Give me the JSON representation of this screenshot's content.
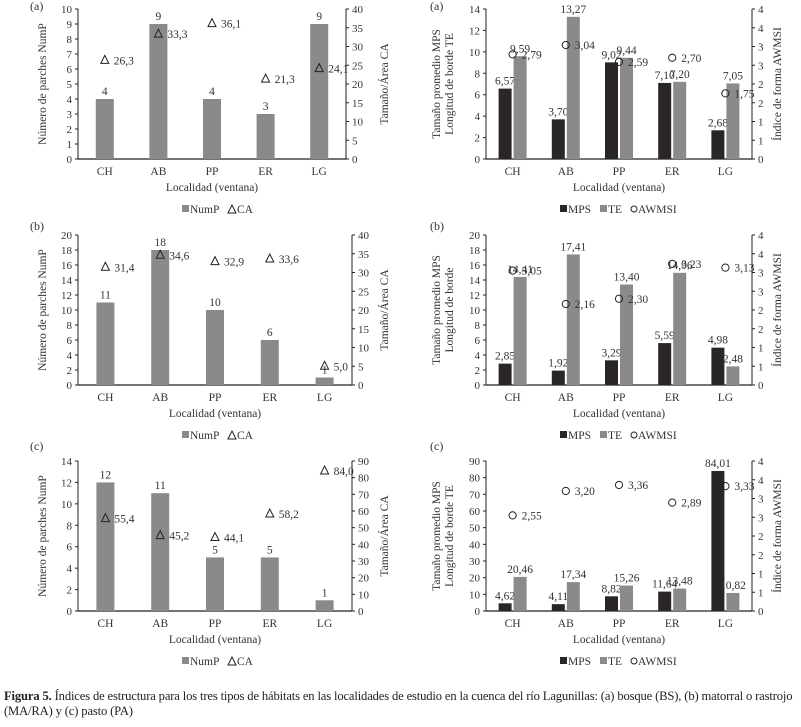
{
  "figure": {
    "caption_label": "Figura 5.",
    "caption_text": " Índices de estructura para los tres tipos de hábitats en las localidades de estudio en la cuenca del río Lagunillas: (a) bosque (BS), (b) matorral o rastrojo (MA/RA) y (c) pasto (PA)"
  },
  "colors": {
    "nump": "#8a8a8c",
    "mps": "#2a2628",
    "te": "#8a8a8c"
  },
  "chart_data": [
    {
      "id": "left-a",
      "panel": "(a)",
      "type": "bar",
      "categories": [
        "CH",
        "AB",
        "PP",
        "ER",
        "LG"
      ],
      "xlabel": "Localidad (ventana)",
      "ylabel": "Número de parches NumP",
      "y2label": "Tamaño/Área CA",
      "ylim": [
        0,
        10
      ],
      "yticks": [
        0,
        1,
        2,
        3,
        4,
        5,
        6,
        7,
        8,
        9,
        10
      ],
      "y2lim": [
        0,
        40
      ],
      "y2ticks": [
        0,
        5,
        10,
        15,
        20,
        25,
        30,
        35,
        40
      ],
      "series": [
        {
          "name": "NumP",
          "kind": "bar",
          "axis": "left",
          "values": [
            4,
            9,
            4,
            3,
            9
          ],
          "labels": [
            "4",
            "9",
            "4",
            "3",
            "9"
          ]
        },
        {
          "name": "CA",
          "kind": "triangle",
          "axis": "right",
          "values": [
            26.3,
            33.3,
            36.1,
            21.3,
            24.1
          ],
          "labels": [
            "26,3",
            "33,3",
            "36,1",
            "21,3",
            "24,1"
          ]
        }
      ],
      "legend": [
        "NumP",
        "CA"
      ],
      "legend_position": "bottom-center"
    },
    {
      "id": "right-a",
      "panel": "(a)",
      "type": "bar",
      "categories": [
        "CH",
        "AB",
        "PP",
        "ER",
        "LG"
      ],
      "xlabel": "Localidad (ventana)",
      "ylabel": [
        "Tamaño promedio MPS",
        "Longitud de borde TE"
      ],
      "y2label": "Índice de forma AWMSI",
      "ylim": [
        0,
        14
      ],
      "yticks": [
        0,
        2,
        4,
        6,
        8,
        10,
        12,
        14
      ],
      "y2lim": [
        0,
        4
      ],
      "y2ticks": [
        0,
        0.5,
        1,
        1.5,
        2,
        2.5,
        3,
        3.5,
        4
      ],
      "y2ticklabels": [
        "0",
        "1",
        "1",
        "2",
        "2",
        "3",
        "3",
        "4",
        "4"
      ],
      "series": [
        {
          "name": "MPS",
          "kind": "bar",
          "axis": "left",
          "values": [
            6.57,
            3.7,
            9.02,
            7.1,
            2.68
          ],
          "labels": [
            "6,57",
            "3,70",
            "9,02",
            "7,10",
            "2,68"
          ]
        },
        {
          "name": "TE",
          "kind": "bar",
          "axis": "left",
          "values": [
            9.59,
            13.27,
            9.44,
            7.2,
            7.05
          ],
          "labels": [
            "9,59",
            "13,27",
            "9,44",
            "7,20",
            "7,05"
          ]
        },
        {
          "name": "AWMSI",
          "kind": "circle",
          "axis": "right",
          "values": [
            2.79,
            3.04,
            2.59,
            2.7,
            1.75
          ],
          "labels": [
            "2,79",
            "3,04",
            "2,59",
            "2,70",
            "1,75"
          ]
        }
      ],
      "legend": [
        "MPS",
        "TE",
        "AWMSI"
      ],
      "legend_position": "bottom-center"
    },
    {
      "id": "left-b",
      "panel": "(b)",
      "type": "bar",
      "categories": [
        "CH",
        "AB",
        "PP",
        "ER",
        "LG"
      ],
      "xlabel": "Localidad (ventana)",
      "ylabel": "Número de parches NumP",
      "y2label": "Tamaño/Área CA",
      "ylim": [
        0,
        20
      ],
      "yticks": [
        0,
        2,
        4,
        6,
        8,
        10,
        12,
        14,
        16,
        18,
        20
      ],
      "y2lim": [
        0,
        40
      ],
      "y2ticks": [
        0,
        5,
        10,
        15,
        20,
        25,
        30,
        35,
        40
      ],
      "series": [
        {
          "name": "NumP",
          "kind": "bar",
          "axis": "left",
          "values": [
            11,
            18,
            10,
            6,
            1
          ],
          "labels": [
            "11",
            "18",
            "10",
            "6",
            "1"
          ]
        },
        {
          "name": "CA",
          "kind": "triangle",
          "axis": "right",
          "values": [
            31.4,
            34.6,
            32.9,
            33.6,
            5.0
          ],
          "labels": [
            "31,4",
            "34,6",
            "32,9",
            "33,6",
            "5,0"
          ]
        }
      ],
      "legend": [
        "NumP",
        "CA"
      ],
      "legend_position": "bottom-center"
    },
    {
      "id": "right-b",
      "panel": "(b)",
      "type": "bar",
      "categories": [
        "CH",
        "AB",
        "PP",
        "ER",
        "LG"
      ],
      "xlabel": "Localidad (ventana)",
      "ylabel": [
        "Tamaño promedio MPS",
        "Longitud de borde"
      ],
      "y2label": "Índice de forma AWMSI",
      "ylim": [
        0,
        20
      ],
      "yticks": [
        0,
        2,
        4,
        6,
        8,
        10,
        12,
        14,
        16,
        18,
        20
      ],
      "y2lim": [
        0,
        4
      ],
      "y2ticks": [
        0,
        0.5,
        1,
        1.5,
        2,
        2.5,
        3,
        3.5,
        4
      ],
      "y2ticklabels": [
        "0",
        "1",
        "1",
        "2",
        "2",
        "3",
        "3",
        "4",
        "4"
      ],
      "series": [
        {
          "name": "MPS",
          "kind": "bar",
          "axis": "left",
          "values": [
            2.85,
            1.92,
            3.29,
            5.59,
            4.98
          ],
          "labels": [
            "2,85",
            "1,92",
            "3,29",
            "5,59",
            "4,98"
          ]
        },
        {
          "name": "TE",
          "kind": "bar",
          "axis": "left",
          "values": [
            14.41,
            17.41,
            13.4,
            14.96,
            2.48
          ],
          "labels": [
            "14,41",
            "17,41",
            "13,40",
            "14,96",
            "2,48"
          ]
        },
        {
          "name": "AWMSI",
          "kind": "circle",
          "axis": "right",
          "values": [
            3.05,
            2.16,
            2.3,
            3.23,
            3.13
          ],
          "labels": [
            "3,05",
            "2,16",
            "2,30",
            "3,23",
            "3,13"
          ]
        }
      ],
      "legend": [
        "MPS",
        "TE",
        "AWMSI"
      ],
      "legend_position": "bottom-center"
    },
    {
      "id": "left-c",
      "panel": "(c)",
      "type": "bar",
      "categories": [
        "CH",
        "AB",
        "PP",
        "ER",
        "LG"
      ],
      "xlabel": "Localidad (ventana)",
      "ylabel": "Número de parches NumP",
      "y2label": "Tamaño/Área CA",
      "ylim": [
        0,
        14
      ],
      "yticks": [
        0,
        2,
        4,
        6,
        8,
        10,
        12,
        14
      ],
      "y2lim": [
        0,
        90
      ],
      "y2ticks": [
        0,
        10,
        20,
        30,
        40,
        50,
        60,
        70,
        80,
        90
      ],
      "series": [
        {
          "name": "NumP",
          "kind": "bar",
          "axis": "left",
          "values": [
            12,
            11,
            5,
            5,
            1
          ],
          "labels": [
            "12",
            "11",
            "5",
            "5",
            "1"
          ]
        },
        {
          "name": "CA",
          "kind": "triangle",
          "axis": "right",
          "values": [
            55.4,
            45.2,
            44.1,
            58.2,
            84.0
          ],
          "labels": [
            "55,4",
            "45,2",
            "44,1",
            "58,2",
            "84,0"
          ]
        }
      ],
      "legend": [
        "NumP",
        "CA"
      ],
      "legend_position": "bottom-center"
    },
    {
      "id": "right-c",
      "panel": "(c)",
      "type": "bar",
      "categories": [
        "CH",
        "AB",
        "PP",
        "ER",
        "LG"
      ],
      "xlabel": "Localidad (ventana)",
      "ylabel": [
        "Tamaño promedio MPS",
        "Longitud de borde TE"
      ],
      "y2label": "Índice de forma AWMSI",
      "ylim": [
        0,
        90
      ],
      "yticks": [
        0,
        10,
        20,
        30,
        40,
        50,
        60,
        70,
        80,
        90
      ],
      "y2lim": [
        0,
        4
      ],
      "y2ticks": [
        0,
        0.5,
        1,
        1.5,
        2,
        2.5,
        3,
        3.5,
        4
      ],
      "y2ticklabels": [
        "0",
        "1",
        "1",
        "2",
        "2",
        "3",
        "3",
        "4",
        "4"
      ],
      "series": [
        {
          "name": "MPS",
          "kind": "bar",
          "axis": "left",
          "values": [
            4.62,
            4.11,
            8.82,
            11.64,
            84.01
          ],
          "labels": [
            "4,62",
            "4,11",
            "8,82",
            "11,64",
            "84,01"
          ]
        },
        {
          "name": "TE",
          "kind": "bar",
          "axis": "left",
          "values": [
            20.46,
            17.34,
            15.26,
            13.48,
            10.82
          ],
          "labels": [
            "20,46",
            "17,34",
            "15,26",
            "13,48",
            "10,82"
          ]
        },
        {
          "name": "AWMSI",
          "kind": "circle",
          "axis": "right",
          "values": [
            2.55,
            3.2,
            3.36,
            2.89,
            3.33
          ],
          "labels": [
            "2,55",
            "3,20",
            "3,36",
            "2,89",
            "3,33"
          ]
        }
      ],
      "legend": [
        "MPS",
        "TE",
        "AWMSI"
      ],
      "legend_position": "bottom-center"
    }
  ]
}
